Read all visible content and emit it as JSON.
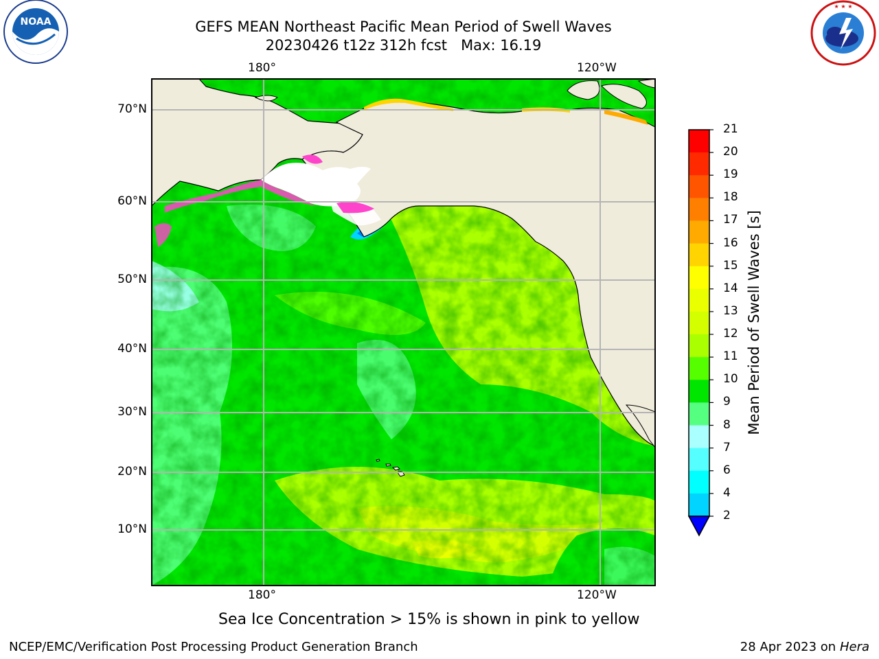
{
  "header": {
    "title_line1": "GEFS MEAN Northeast Pacific Mean Period of Swell Waves",
    "title_line2": "20230426 t12z 312h fcst   Max: 16.19"
  },
  "logos": {
    "left": "NOAA",
    "right": "NATIONAL WEATHER SERVICE"
  },
  "map": {
    "lon_labels_top": [
      "180°",
      "120°W"
    ],
    "lon_labels_bottom": [
      "180°",
      "120°W"
    ],
    "lat_labels": [
      "70°N",
      "60°N",
      "50°N",
      "40°N",
      "30°N",
      "20°N",
      "10°N"
    ],
    "land_color": "#efecdc",
    "grid_color": "#b4b4b4"
  },
  "colorbar": {
    "title": "Mean Period of Swell Waves [s]",
    "ticks": [
      "21",
      "20",
      "19",
      "18",
      "17",
      "16",
      "15",
      "14",
      "13",
      "12",
      "11",
      "10",
      "9",
      "8",
      "7",
      "6",
      "4",
      "2"
    ],
    "colors_top_to_bottom": [
      "#ff0000",
      "#ff2a00",
      "#ff5500",
      "#ff7f00",
      "#ffaa00",
      "#ffd400",
      "#ffff00",
      "#eaff00",
      "#d4ff00",
      "#aaff00",
      "#55ff00",
      "#00e600",
      "#55ff80",
      "#aaffff",
      "#55ffff",
      "#00ffff",
      "#00d4ff",
      "#0080ff"
    ],
    "under_color": "#0000ff"
  },
  "footer": {
    "note": "Sea Ice Concentration > 15% is shown in pink to yellow",
    "left": "NCEP/EMC/Verification Post Processing Product Generation Branch",
    "right_prefix": "28 Apr 2023 on ",
    "right_host": "Hera"
  }
}
